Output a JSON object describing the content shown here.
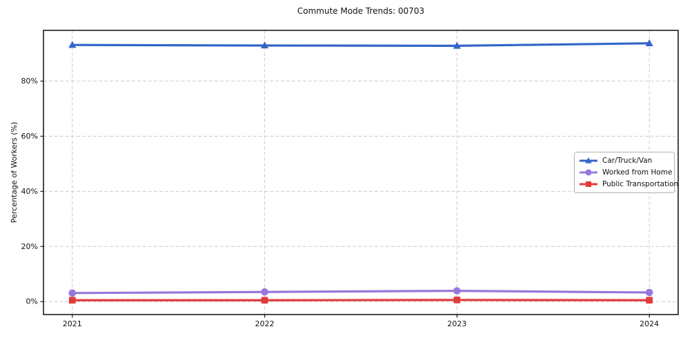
{
  "chart_data": {
    "type": "line",
    "title": "Commute Mode Trends: 00703",
    "xlabel": "",
    "ylabel": "Percentage of Workers (%)",
    "x": [
      2021,
      2022,
      2023,
      2024
    ],
    "x_tick_labels": [
      "2021",
      "2022",
      "2023",
      "2024"
    ],
    "y_ticks": [
      0,
      20,
      40,
      60,
      80
    ],
    "y_tick_labels": [
      "0%",
      "20%",
      "40%",
      "60%",
      "80%"
    ],
    "xlim": [
      2020.85,
      2024.15
    ],
    "ylim": [
      -4.7,
      98.4
    ],
    "grid": "dashed, both axes",
    "legend_position": "center-right",
    "series": [
      {
        "name": "Car/Truck/Van",
        "color": "#3465c8",
        "marker": "triangle",
        "values": [
          93.1,
          92.9,
          92.8,
          93.7
        ]
      },
      {
        "name": "Worked from Home",
        "color": "#9678dc",
        "marker": "circle",
        "values": [
          3.1,
          3.5,
          3.9,
          3.3
        ]
      },
      {
        "name": "Public Transportation",
        "color": "#e23b3b",
        "marker": "square",
        "values": [
          0.5,
          0.5,
          0.6,
          0.5
        ]
      }
    ]
  },
  "style_colors": {
    "grid": "#cccccc",
    "axes_frame": "#1a1a1a",
    "text": "#111111",
    "legend_border": "#b0b0b0"
  }
}
